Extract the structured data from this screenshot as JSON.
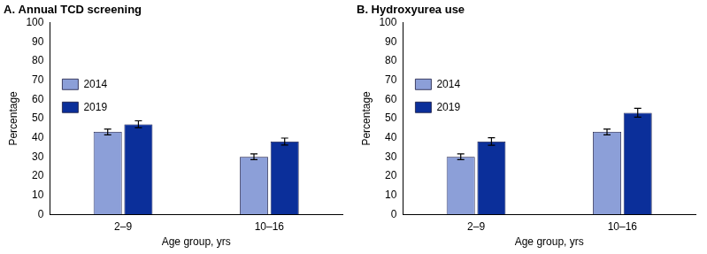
{
  "chart_data": [
    {
      "type": "bar",
      "title": "A. Annual TCD screening",
      "x_label": "Age group, yrs",
      "y_label": "Percentage",
      "categories": [
        "2–9",
        "10–16"
      ],
      "series": [
        {
          "name": "2014",
          "color": "#8c9fd8",
          "values": [
            43,
            30
          ],
          "errors": [
            1.5,
            1.5
          ]
        },
        {
          "name": "2019",
          "color": "#0b2f9a",
          "values": [
            47,
            38
          ],
          "errors": [
            1.8,
            1.8
          ]
        }
      ],
      "ylim": [
        0,
        100
      ],
      "yticks": [
        0,
        10,
        20,
        30,
        40,
        50,
        60,
        70,
        80,
        90,
        100
      ],
      "grid": false,
      "legend": "top"
    },
    {
      "type": "bar",
      "title": "B. Hydroxyurea use",
      "x_label": "Age group, yrs",
      "y_label": "Percentage",
      "categories": [
        "2–9",
        "10–16"
      ],
      "series": [
        {
          "name": "2014",
          "color": "#8c9fd8",
          "values": [
            30,
            43
          ],
          "errors": [
            1.5,
            1.5
          ]
        },
        {
          "name": "2019",
          "color": "#0b2f9a",
          "values": [
            38,
            53
          ],
          "errors": [
            2.0,
            2.3
          ]
        }
      ],
      "ylim": [
        0,
        100
      ],
      "yticks": [
        0,
        10,
        20,
        30,
        40,
        50,
        60,
        70,
        80,
        90,
        100
      ],
      "grid": false,
      "legend": "top"
    }
  ]
}
